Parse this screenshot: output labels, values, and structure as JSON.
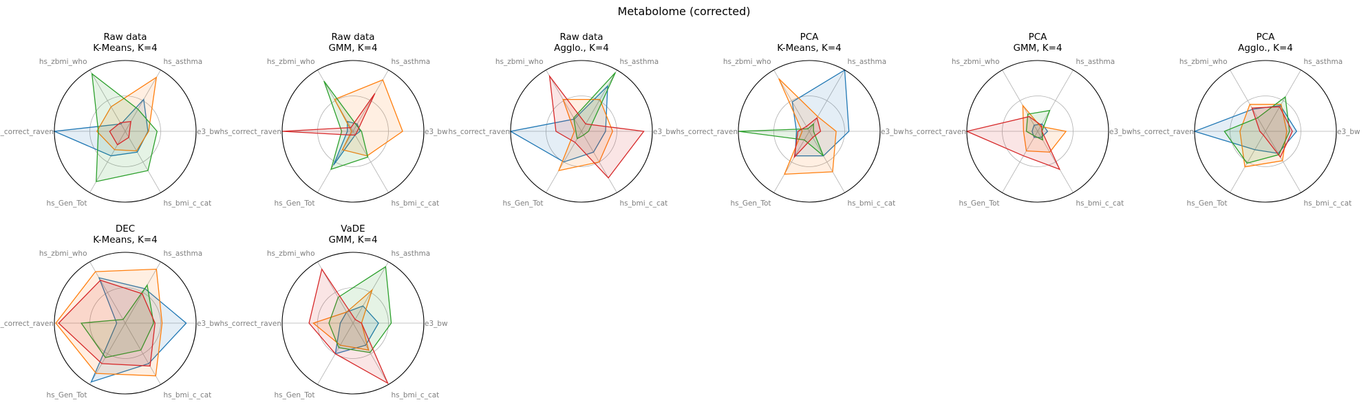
{
  "figure": {
    "suptitle": "Metabolome (corrected)"
  },
  "chart_data": {
    "type": "radar",
    "axes": [
      "e3_bw",
      "hs_asthma",
      "hs_zbmi_who",
      "hs_correct_raven",
      "hs_Gen_Tot",
      "hs_bmi_c_cat"
    ],
    "rmax": 1.0,
    "grid_circles": [
      0.5
    ],
    "colors": [
      "#1f77b4",
      "#ff7f0e",
      "#2ca02c",
      "#d62728"
    ],
    "panels": [
      {
        "title_line1": "Raw data",
        "title_line2": "K-Means, K=4",
        "series": [
          [
            0.32,
            0.52,
            0.12,
            1.0,
            0.4,
            0.34
          ],
          [
            0.33,
            0.88,
            0.4,
            0.4,
            0.3,
            0.32
          ],
          [
            0.45,
            0.36,
            0.94,
            0.38,
            0.82,
            0.64
          ],
          [
            0.06,
            0.16,
            0.14,
            0.22,
            0.22,
            0.1
          ]
        ]
      },
      {
        "title_line1": "Raw data",
        "title_line2": "GMM, K=4",
        "series": [
          [
            0.1,
            0.12,
            0.16,
            0.08,
            0.55,
            0.06
          ],
          [
            0.7,
            0.84,
            0.52,
            0.02,
            0.3,
            0.4
          ],
          [
            0.12,
            0.1,
            0.82,
            0.16,
            0.62,
            0.42
          ],
          [
            0.06,
            0.62,
            0.06,
            1.0,
            0.06,
            0.06
          ]
        ]
      },
      {
        "title_line1": "Raw data",
        "title_line2": "Agglo., K=4",
        "series": [
          [
            0.34,
            0.74,
            0.2,
            1.0,
            0.5,
            0.34
          ],
          [
            0.44,
            0.52,
            0.52,
            0.1,
            0.64,
            0.5
          ],
          [
            0.1,
            0.96,
            0.22,
            0.08,
            0.12,
            0.06
          ],
          [
            0.88,
            0.12,
            0.9,
            0.36,
            0.18,
            0.76
          ]
        ]
      },
      {
        "title_line1": "PCA",
        "title_line2": "K-Means, K=4",
        "series": [
          [
            0.56,
            1.0,
            0.48,
            0.18,
            0.4,
            0.4
          ],
          [
            0.38,
            0.24,
            0.86,
            0.1,
            0.7,
            0.66
          ],
          [
            0.06,
            0.12,
            0.04,
            1.0,
            0.14,
            0.4
          ],
          [
            0.16,
            0.22,
            0.08,
            0.16,
            0.42,
            0.1
          ]
        ]
      },
      {
        "title_line1": "PCA",
        "title_line2": "GMM, K=4",
        "series": [
          [
            0.14,
            0.12,
            0.1,
            0.08,
            0.1,
            0.1
          ],
          [
            0.4,
            0.08,
            0.42,
            0.2,
            0.32,
            0.34
          ],
          [
            0.06,
            0.34,
            0.28,
            0.16,
            0.08,
            0.14
          ],
          [
            0.06,
            0.1,
            0.24,
            1.0,
            0.4,
            0.62
          ]
        ]
      },
      {
        "title_line1": "PCA",
        "title_line2": "Agglo., K=4",
        "series": [
          [
            0.44,
            0.42,
            0.36,
            1.0,
            0.3,
            0.36
          ],
          [
            0.3,
            0.44,
            0.44,
            0.36,
            0.58,
            0.48
          ],
          [
            0.34,
            0.56,
            0.22,
            0.58,
            0.52,
            0.38
          ],
          [
            0.38,
            0.4,
            0.38,
            0.08,
            0.06,
            0.42
          ]
        ]
      },
      {
        "title_line1": "DEC",
        "title_line2": "K-Means, K=4",
        "series": [
          [
            0.86,
            0.56,
            0.74,
            0.12,
            0.96,
            0.66
          ],
          [
            0.52,
            0.88,
            0.84,
            0.98,
            0.82,
            0.86
          ],
          [
            0.4,
            0.62,
            0.06,
            0.62,
            0.56,
            0.44
          ],
          [
            0.42,
            0.48,
            0.7,
            0.94,
            0.66,
            0.7
          ]
        ]
      },
      {
        "title_line1": "VaDE",
        "title_line2": "GMM, K=4",
        "series": [
          [
            0.36,
            0.28,
            0.18,
            0.18,
            0.5,
            0.36
          ],
          [
            0.12,
            0.54,
            0.18,
            0.56,
            0.36,
            0.44
          ],
          [
            0.54,
            0.92,
            0.42,
            0.34,
            0.4,
            0.48
          ],
          [
            0.12,
            0.06,
            0.88,
            0.62,
            0.5,
            0.98
          ]
        ]
      }
    ]
  }
}
